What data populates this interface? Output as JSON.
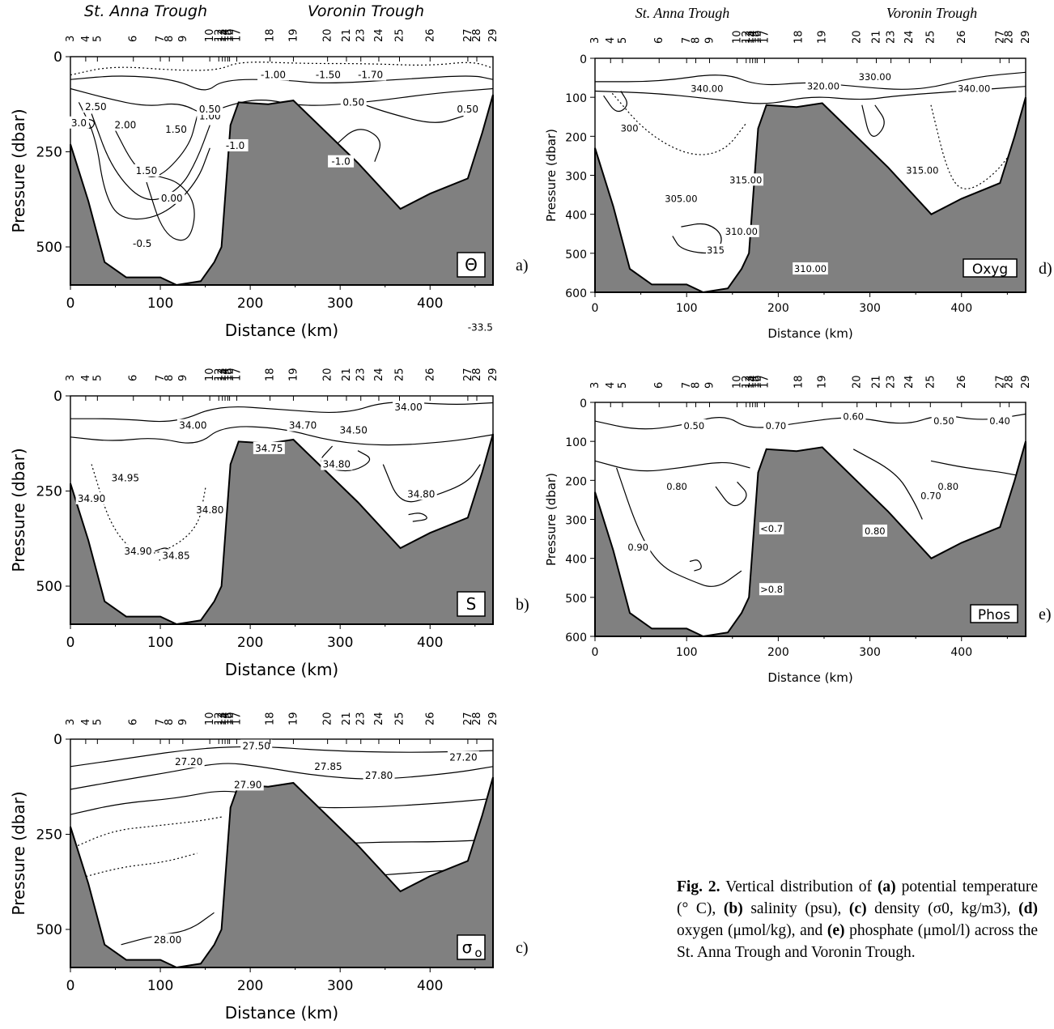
{
  "figure": {
    "label": "Fig. 2.",
    "caption_parts": [
      {
        "b": "",
        "t": " Vertical distribution of "
      },
      {
        "b": "(a)",
        "t": " potential temperature (° C), "
      },
      {
        "b": "(b)",
        "t": " salinity (psu), "
      },
      {
        "b": "(c)",
        "t": " density (σ0, kg/m3), "
      },
      {
        "b": "(d)",
        "t": " oxygen (μmol/kg), and "
      },
      {
        "b": "(e)",
        "t": " phosphate (μmol/l) across the St. Anna Trough and Voronin Trough."
      }
    ]
  },
  "chart_data": [
    {
      "id": "a",
      "type": "contour",
      "panel_letter": "a)",
      "variable_box": "Θ",
      "top_labels": [
        "St. Anna Trough",
        "Voronin Trough"
      ],
      "xlabel": "Distance (km)",
      "ylabel": "Pressure (dbar)",
      "xlim": [
        0,
        470
      ],
      "ylim": [
        600,
        0
      ],
      "xticks": [
        "0",
        "100",
        "200",
        "300",
        "400"
      ],
      "yticks": [
        "0",
        "250",
        "500"
      ],
      "contour_labels": [
        "3.0",
        "2.50",
        "2.00",
        "1.50",
        "1.50",
        "1.00",
        "0.50",
        "0.00",
        "-0.5",
        "-1.0",
        "-1.0",
        "-1.00",
        "-1.50",
        "-1.70",
        "0.50",
        "0.50"
      ]
    },
    {
      "id": "b",
      "type": "contour",
      "panel_letter": "b)",
      "variable_box": "S",
      "xlabel": "Distance (km)",
      "ylabel": "Pressure (dbar)",
      "xlim": [
        0,
        470
      ],
      "ylim": [
        600,
        0
      ],
      "xticks": [
        "0",
        "100",
        "200",
        "300",
        "400"
      ],
      "yticks": [
        "0",
        "250",
        "500"
      ],
      "contour_labels": [
        "-33.5",
        "34.00",
        "34.00",
        "34.70",
        "34.50",
        "34.75",
        "34.80",
        "34.80",
        "34.95",
        "34.90",
        "34.85",
        "34.80",
        "34.90"
      ]
    },
    {
      "id": "c",
      "type": "contour",
      "panel_letter": "c)",
      "variable_box": "σ",
      "variable_sub": "o",
      "xlabel": "Distance (km)",
      "ylabel": "Pressure (dbar)",
      "xlim": [
        0,
        470
      ],
      "ylim": [
        600,
        0
      ],
      "xticks": [
        "0",
        "100",
        "200",
        "300",
        "400"
      ],
      "yticks": [
        "0",
        "250",
        "500"
      ],
      "contour_labels": [
        "27.20",
        "27.50",
        "27.20",
        "27.85",
        "27.80",
        "27.90",
        "28.00"
      ]
    },
    {
      "id": "d",
      "type": "contour",
      "panel_letter": "d)",
      "variable_box": "Oxyg",
      "top_labels": [
        "St. Anna Trough",
        "Voronin Trough"
      ],
      "xlabel": "Distance (km)",
      "ylabel": "Pressure (dbar)",
      "xlim": [
        0,
        470
      ],
      "ylim": [
        600,
        0
      ],
      "xticks": [
        "0",
        "100",
        "200",
        "300",
        "400"
      ],
      "yticks": [
        "0",
        "100",
        "200",
        "300",
        "400",
        "500",
        "600"
      ],
      "contour_labels": [
        "340.00",
        "320.00",
        "330.00",
        "340.00",
        "300",
        "315.00",
        "305.00",
        "310.00",
        "315",
        "310.00",
        "315.00"
      ]
    },
    {
      "id": "e",
      "type": "contour",
      "panel_letter": "e)",
      "variable_box": "Phos",
      "xlabel": "Distance (km)",
      "ylabel": "Pressure (dbar)",
      "xlim": [
        0,
        470
      ],
      "ylim": [
        600,
        0
      ],
      "xticks": [
        "0",
        "100",
        "200",
        "300",
        "400"
      ],
      "yticks": [
        "0",
        "100",
        "200",
        "300",
        "400",
        "500",
        "600"
      ],
      "contour_labels": [
        "0.50",
        "0.70",
        "0.60",
        "0.50",
        "0.40",
        "0.80",
        "0.90",
        "<0.7",
        ">0.8",
        "0.80",
        "0.70",
        "0.80"
      ]
    }
  ],
  "stations": [
    "3",
    "4",
    "5",
    "6",
    "7",
    "8",
    "9",
    "10",
    "12",
    "13",
    "14",
    "15",
    "16",
    "17",
    "18",
    "19",
    "20",
    "21",
    "23",
    "24",
    "25",
    "26",
    "27",
    "28",
    "29"
  ],
  "station_km": [
    0,
    17,
    30,
    70,
    100,
    110,
    125,
    155,
    165,
    169,
    172,
    175,
    177,
    185,
    222,
    248,
    286,
    307,
    323,
    343,
    366,
    400,
    442,
    452,
    470
  ],
  "bathymetry": [
    [
      0,
      230
    ],
    [
      20,
      380
    ],
    [
      38,
      540
    ],
    [
      62,
      580
    ],
    [
      100,
      580
    ],
    [
      118,
      600
    ],
    [
      145,
      590
    ],
    [
      160,
      540
    ],
    [
      168,
      500
    ],
    [
      178,
      180
    ],
    [
      187,
      120
    ],
    [
      220,
      125
    ],
    [
      248,
      115
    ],
    [
      320,
      280
    ],
    [
      367,
      400
    ],
    [
      400,
      360
    ],
    [
      442,
      320
    ],
    [
      458,
      200
    ],
    [
      470,
      100
    ]
  ],
  "colors": {
    "land": "#808080",
    "ink": "#000000"
  }
}
